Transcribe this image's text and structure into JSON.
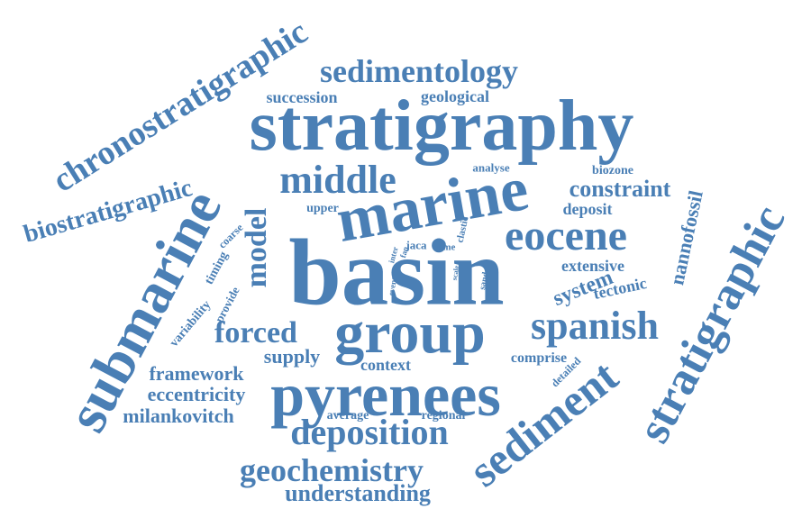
{
  "accent_color": "#4a7fb5",
  "words": [
    "basin",
    "stratigraphy",
    "pyrenees",
    "group",
    "submarine",
    "marine",
    "stratigraphic",
    "sediment",
    "eocene",
    "spanish",
    "middle",
    "deposition",
    "geochemistry",
    "sedimentology",
    "chronostratigraphic",
    "biostratigraphic",
    "model",
    "forced",
    "understanding",
    "constraint",
    "system",
    "nannofossil",
    "milankovitch",
    "eccentricity",
    "framework",
    "supply",
    "context",
    "tectonic",
    "deposit",
    "extensive",
    "comprise",
    "succession",
    "geological",
    "upper",
    "analyse",
    "biozone",
    "regional",
    "average",
    "variability",
    "timing",
    "provide",
    "coarse",
    "detailed",
    "jaca",
    "time",
    "clastic",
    "inter",
    "fan",
    "sand",
    "scale",
    "event",
    "age"
  ]
}
